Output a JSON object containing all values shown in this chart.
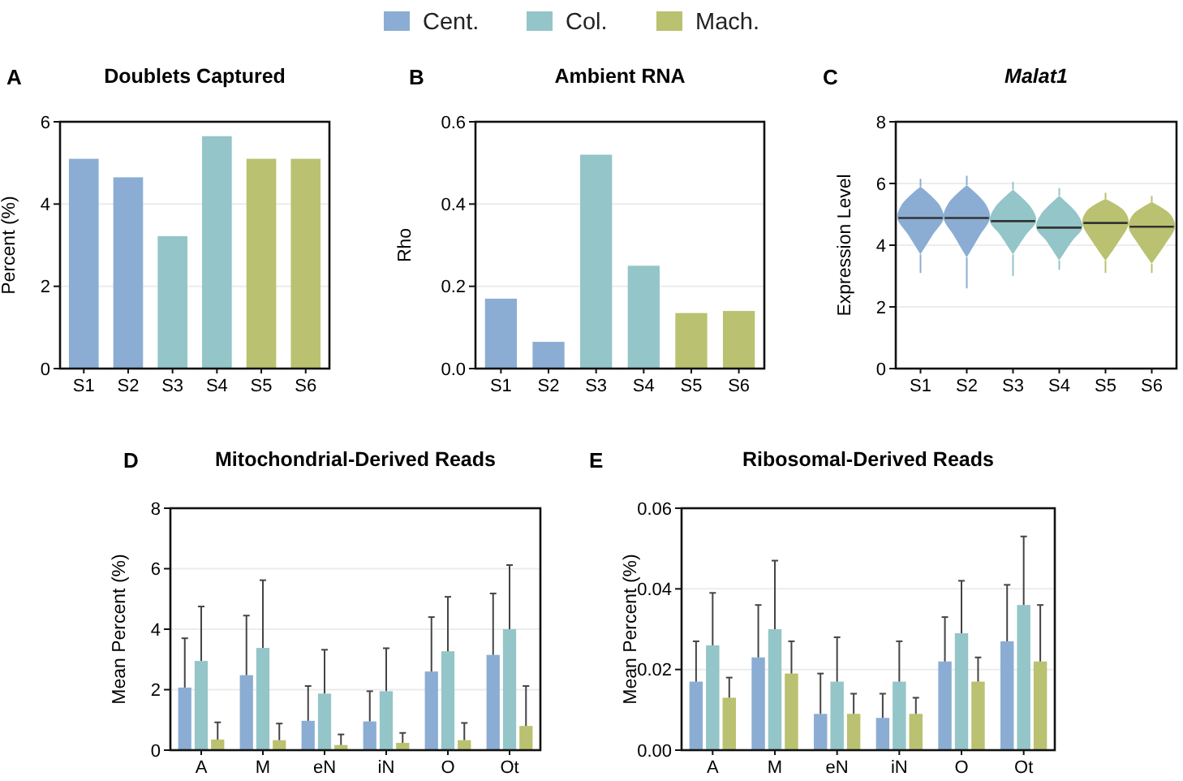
{
  "chart_data": [
    {
      "type": "bar",
      "title": "Doublets Captured",
      "ylabel": "Percent  (%)",
      "annotations": [
        "A"
      ],
      "categories": [
        "S1",
        "S2",
        "S3",
        "S4",
        "S5",
        "S6"
      ],
      "values": [
        5.1,
        4.65,
        3.22,
        5.65,
        5.1,
        5.1
      ],
      "colors": [
        "#8badd3",
        "#8badd3",
        "#94c5c8",
        "#94c5c8",
        "#bac170",
        "#bac170"
      ],
      "ylim": [
        0,
        6
      ],
      "yticks": [
        0,
        2,
        4,
        6
      ],
      "grid": "y"
    },
    {
      "type": "bar",
      "title": "Ambient RNA",
      "ylabel": "Rho",
      "annotations": [
        "B"
      ],
      "categories": [
        "S1",
        "S2",
        "S3",
        "S4",
        "S5",
        "S6"
      ],
      "values": [
        0.17,
        0.065,
        0.52,
        0.25,
        0.135,
        0.14
      ],
      "colors": [
        "#8badd3",
        "#8badd3",
        "#94c5c8",
        "#94c5c8",
        "#bac170",
        "#bac170"
      ],
      "ylim": [
        0,
        0.6
      ],
      "yticks": [
        {
          "value": 0,
          "label": "0.0"
        },
        {
          "value": 0.2,
          "label": "0.2"
        },
        {
          "value": 0.4,
          "label": "0.4"
        },
        {
          "value": 0.6,
          "label": "0.6"
        }
      ],
      "grid": "y"
    },
    {
      "type": "box",
      "title": "Malat1",
      "ylabel": "Expression  Level",
      "annotations": [
        "C"
      ],
      "categories": [
        "S1",
        "S2",
        "S3",
        "S4",
        "S5",
        "S6"
      ],
      "colors": [
        "#8badd3",
        "#8badd3",
        "#94c5c8",
        "#94c5c8",
        "#bac170",
        "#bac170"
      ],
      "boxes": [
        {
          "low": 3.1,
          "q1": 3.7,
          "median": 4.88,
          "q3": 5.9,
          "high": 6.15
        },
        {
          "low": 2.6,
          "q1": 3.6,
          "median": 4.88,
          "q3": 5.95,
          "high": 6.25
        },
        {
          "low": 3.0,
          "q1": 3.7,
          "median": 4.78,
          "q3": 5.8,
          "high": 6.05
        },
        {
          "low": 3.2,
          "q1": 3.5,
          "median": 4.57,
          "q3": 5.6,
          "high": 5.85
        },
        {
          "low": 3.1,
          "q1": 3.5,
          "median": 4.72,
          "q3": 5.5,
          "high": 5.7
        },
        {
          "low": 3.1,
          "q1": 3.4,
          "median": 4.6,
          "q3": 5.4,
          "high": 5.6
        }
      ],
      "ylim": [
        0,
        8
      ],
      "yticks": [
        0,
        2,
        4,
        6,
        8
      ],
      "grid": "y"
    },
    {
      "type": "bar",
      "title": "Mitochondrial-Derived  Reads",
      "ylabel": "Mean Percent (%)",
      "annotations": [
        "D"
      ],
      "categories": [
        "A",
        "M",
        "eN",
        "iN",
        "O",
        "Ot"
      ],
      "legend": "top",
      "series": [
        {
          "name": "Cent.",
          "color": "#8badd3",
          "values": [
            2.07,
            2.48,
            0.97,
            0.95,
            2.6,
            3.15
          ],
          "errors": [
            [
              2.07,
              3.7
            ],
            [
              2.48,
              4.45
            ],
            [
              0.97,
              2.12
            ],
            [
              0.95,
              1.95
            ],
            [
              2.6,
              4.4
            ],
            [
              3.15,
              5.18
            ]
          ]
        },
        {
          "name": "Col.",
          "color": "#94c5c8",
          "values": [
            2.95,
            3.38,
            1.87,
            1.95,
            3.27,
            4.0
          ],
          "errors": [
            [
              2.95,
              4.75
            ],
            [
              3.38,
              5.62
            ],
            [
              1.87,
              3.32
            ],
            [
              1.95,
              3.37
            ],
            [
              3.27,
              5.07
            ],
            [
              4.0,
              6.12
            ]
          ]
        },
        {
          "name": "Mach.",
          "color": "#bac170",
          "values": [
            0.35,
            0.33,
            0.17,
            0.24,
            0.33,
            0.8
          ],
          "errors": [
            [
              0.35,
              0.92
            ],
            [
              0.33,
              0.88
            ],
            [
              0.17,
              0.52
            ],
            [
              0.24,
              0.57
            ],
            [
              0.33,
              0.9
            ],
            [
              0.8,
              2.12
            ]
          ]
        }
      ],
      "ylim": [
        0,
        8
      ],
      "yticks": [
        0,
        2,
        4,
        6,
        8
      ],
      "grid": "y"
    },
    {
      "type": "bar",
      "title": "Ribosomal-Derived  Reads",
      "ylabel": "Mean Percent (%)",
      "annotations": [
        "E"
      ],
      "categories": [
        "A",
        "M",
        "eN",
        "iN",
        "O",
        "Ot"
      ],
      "series": [
        {
          "color": "#8badd3",
          "values": [
            0.017,
            0.023,
            0.009,
            0.008,
            0.022,
            0.027
          ],
          "errors": [
            [
              0.017,
              0.027
            ],
            [
              0.023,
              0.036
            ],
            [
              0.009,
              0.019
            ],
            [
              0.008,
              0.014
            ],
            [
              0.022,
              0.033
            ],
            [
              0.027,
              0.041
            ]
          ]
        },
        {
          "color": "#94c5c8",
          "values": [
            0.026,
            0.03,
            0.017,
            0.017,
            0.029,
            0.036
          ],
          "errors": [
            [
              0.026,
              0.039
            ],
            [
              0.03,
              0.047
            ],
            [
              0.017,
              0.028
            ],
            [
              0.017,
              0.027
            ],
            [
              0.029,
              0.042
            ],
            [
              0.036,
              0.053
            ]
          ]
        },
        {
          "color": "#bac170",
          "values": [
            0.013,
            0.019,
            0.009,
            0.009,
            0.017,
            0.022
          ],
          "errors": [
            [
              0.013,
              0.018
            ],
            [
              0.019,
              0.027
            ],
            [
              0.009,
              0.014
            ],
            [
              0.009,
              0.013
            ],
            [
              0.017,
              0.023
            ],
            [
              0.022,
              0.036
            ]
          ]
        }
      ],
      "ylim": [
        0,
        0.06
      ],
      "yticks": [
        {
          "value": 0,
          "label": "0.00"
        },
        {
          "value": 0.02,
          "label": "0.02"
        },
        {
          "value": 0.04,
          "label": "0.04"
        },
        {
          "value": 0.06,
          "label": "0.06"
        }
      ],
      "grid": "y"
    }
  ]
}
